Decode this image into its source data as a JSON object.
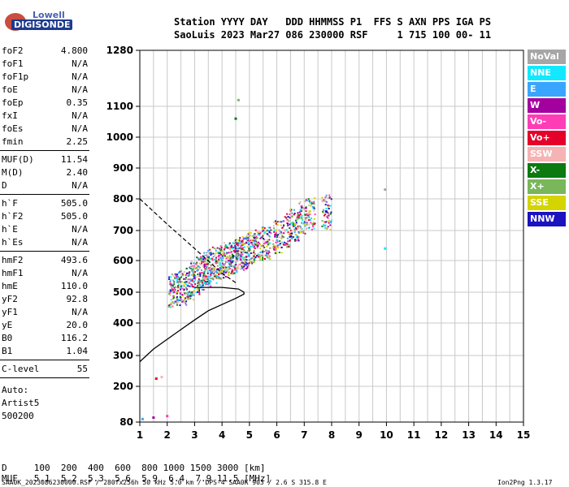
{
  "logo": {
    "brand_top": "Lowell",
    "brand_bottom": "DIGISONDE"
  },
  "header": {
    "line1": "Station YYYY DAY   DDD HHMMSS P1  FFS S AXN PPS IGA PS",
    "line2": "SaoLuis 2023 Mar27 086 230000 RSF     1 715 100 00- 11"
  },
  "params": [
    {
      "name": "foF2",
      "value": "4.800"
    },
    {
      "name": "foF1",
      "value": "N/A"
    },
    {
      "name": "foF1p",
      "value": "N/A"
    },
    {
      "name": "foE",
      "value": "N/A"
    },
    {
      "name": "foEp",
      "value": "0.35"
    },
    {
      "name": "fxI",
      "value": "N/A"
    },
    {
      "name": "foEs",
      "value": "N/A"
    },
    {
      "name": "fmin",
      "value": "2.25"
    },
    {
      "name": "MUF(D)",
      "value": "11.54"
    },
    {
      "name": "M(D)",
      "value": "2.40"
    },
    {
      "name": "D",
      "value": "N/A"
    },
    {
      "name": "h`F",
      "value": "505.0"
    },
    {
      "name": "h`F2",
      "value": "505.0"
    },
    {
      "name": "h`E",
      "value": "N/A"
    },
    {
      "name": "h`Es",
      "value": "N/A"
    },
    {
      "name": "hmF2",
      "value": "493.6"
    },
    {
      "name": "hmF1",
      "value": "N/A"
    },
    {
      "name": "hmE",
      "value": "110.0"
    },
    {
      "name": "yF2",
      "value": "92.8"
    },
    {
      "name": "yF1",
      "value": "N/A"
    },
    {
      "name": "yE",
      "value": "20.0"
    },
    {
      "name": "B0",
      "value": "116.2"
    },
    {
      "name": "B1",
      "value": "1.04"
    },
    {
      "name": "C-level",
      "value": "55"
    }
  ],
  "autoscale": {
    "line1": "Auto:",
    "line2": "Artist5",
    "line3": "500200"
  },
  "footer": {
    "d_row": "D     100  200  400  600  800 1000 1500 3000 [km]",
    "muf_row": "MUF   5.1  5.2  5.3  5.6  5.9  6.4  7.9 11.5 [MHz]",
    "status": "SAA0K_2023086230000.RSF / 280fx256h 50 kHz 5.0 km / DPS-4 SAA0K 903 / 2.6 S 315.8 E",
    "version": "Ion2Png 1.3.17"
  },
  "legend": [
    {
      "label": "NoVal",
      "color": "#a6a6a6"
    },
    {
      "label": "NNE",
      "color": "#12e8ff"
    },
    {
      "label": "E",
      "color": "#3aa5ff"
    },
    {
      "label": "W",
      "color": "#a3009f"
    },
    {
      "label": "Vo-",
      "color": "#ff3cb8"
    },
    {
      "label": "Vo+",
      "color": "#e4002a"
    },
    {
      "label": "SSW",
      "color": "#f5b3b3"
    },
    {
      "label": "X-",
      "color": "#0c7a10"
    },
    {
      "label": "X+",
      "color": "#79b75a"
    },
    {
      "label": "SSE",
      "color": "#d4d400"
    },
    {
      "label": "NNW",
      "color": "#1b12c0"
    }
  ],
  "chart_data": {
    "type": "scatter",
    "title": "",
    "xlabel": "",
    "ylabel": "",
    "xlim": [
      1,
      15
    ],
    "ylim": [
      80,
      1280
    ],
    "x_ticks": [
      1,
      2,
      3,
      4,
      5,
      6,
      7,
      8,
      9,
      10,
      11,
      12,
      13,
      14,
      15
    ],
    "y_ticks": [
      80,
      200,
      300,
      400,
      500,
      600,
      700,
      800,
      900,
      1000,
      1100,
      1280
    ],
    "grid": true,
    "series": [
      {
        "name": "virtual height trace (ionogram echoes)",
        "points": [
          [
            2.2,
            505
          ],
          [
            2.5,
            515
          ],
          [
            2.8,
            530
          ],
          [
            3.0,
            545
          ],
          [
            3.2,
            560
          ],
          [
            3.4,
            575
          ],
          [
            3.6,
            585
          ],
          [
            3.8,
            595
          ],
          [
            4.0,
            600
          ],
          [
            4.2,
            610
          ],
          [
            4.4,
            615
          ],
          [
            4.6,
            620
          ],
          [
            4.8,
            630
          ],
          [
            5.0,
            640
          ],
          [
            5.3,
            650
          ],
          [
            5.6,
            660
          ],
          [
            6.0,
            680
          ],
          [
            6.3,
            700
          ],
          [
            6.6,
            720
          ],
          [
            6.9,
            740
          ],
          [
            7.2,
            760
          ],
          [
            7.8,
            760
          ],
          [
            9.95,
            830
          ],
          [
            9.95,
            640
          ],
          [
            1.1,
            90
          ],
          [
            1.5,
            95
          ],
          [
            2.0,
            100
          ],
          [
            1.6,
            225
          ],
          [
            1.8,
            230
          ],
          [
            4.5,
            1060
          ],
          [
            4.6,
            1120
          ]
        ]
      },
      {
        "name": "electron density profile",
        "points": [
          [
            1,
            280
          ],
          [
            1.5,
            320
          ],
          [
            2,
            350
          ],
          [
            2.5,
            380
          ],
          [
            3,
            410
          ],
          [
            3.5,
            440
          ],
          [
            4,
            460
          ],
          [
            4.5,
            480
          ],
          [
            4.8,
            494
          ],
          [
            4.8,
            500
          ],
          [
            4.6,
            510
          ],
          [
            4.0,
            515
          ],
          [
            3.0,
            515
          ]
        ]
      },
      {
        "name": "dashed extension",
        "points": [
          [
            1,
            800
          ],
          [
            2.0,
            720
          ],
          [
            3.0,
            640
          ],
          [
            4.0,
            560
          ],
          [
            4.5,
            530
          ]
        ]
      }
    ]
  }
}
